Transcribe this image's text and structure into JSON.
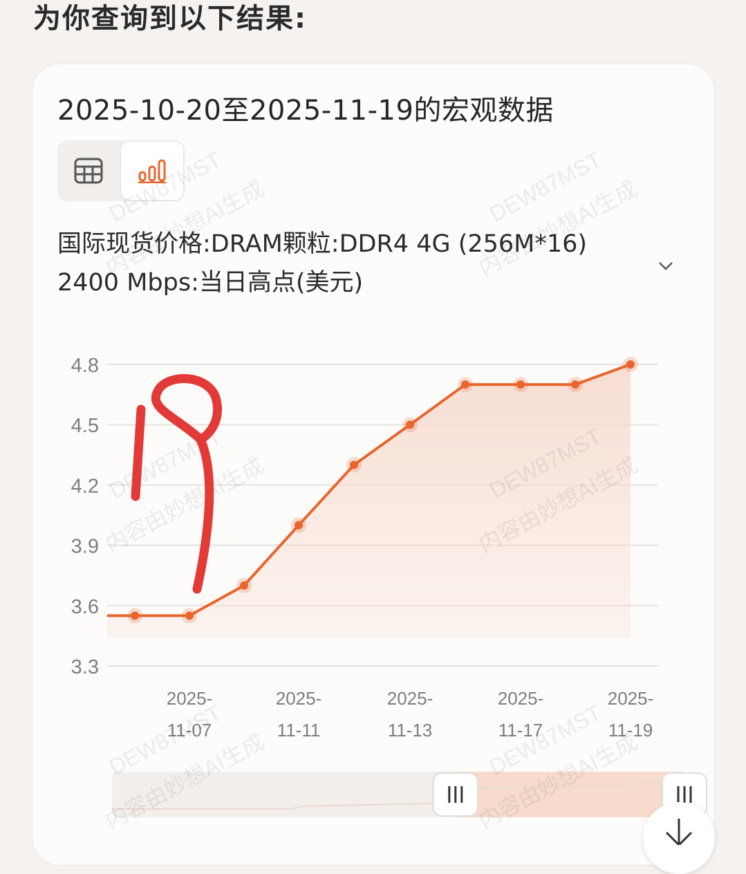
{
  "header": {
    "title": "为你查询到以下结果:"
  },
  "card": {
    "title": "2025-10-20至2025-11-19的宏观数据",
    "view_toggle": {
      "options": [
        "table-icon",
        "bar-chart-icon"
      ],
      "selected": "bar-chart-icon"
    },
    "series_select": {
      "label": "国际现货价格:DRAM颗粒:DDR4 4G (256M*16) 2400 Mbps:当日高点(美元)"
    }
  },
  "chart_data": {
    "type": "area",
    "title": "",
    "xlabel": "",
    "ylabel": "",
    "ylim": [
      3.3,
      4.8
    ],
    "yticks": [
      "4.8",
      "4.5",
      "4.2",
      "3.9",
      "3.6",
      "3.3"
    ],
    "x_tick_labels": [
      {
        "line1": "2025-",
        "line2": "11-07"
      },
      {
        "line1": "2025-",
        "line2": "11-11"
      },
      {
        "line1": "2025-",
        "line2": "11-13"
      },
      {
        "line1": "2025-",
        "line2": "11-17"
      },
      {
        "line1": "2025-",
        "line2": "11-19"
      }
    ],
    "x": [
      "2025-11-06",
      "2025-11-07",
      "2025-11-10",
      "2025-11-11",
      "2025-11-12",
      "2025-11-13",
      "2025-11-14",
      "2025-11-17",
      "2025-11-18",
      "2025-11-19"
    ],
    "series": [
      {
        "values": [
          3.55,
          3.55,
          3.7,
          4.0,
          4.3,
          4.5,
          4.7,
          4.7,
          4.7,
          4.8
        ]
      }
    ],
    "grid": true,
    "line_color": "#e8652e",
    "area_color": "#f6d9cc"
  },
  "data_zoom": {
    "range_start_percent": 60,
    "range_end_percent": 100
  },
  "watermarks": [
    "DEW87MST",
    "内容由妙想AI生成"
  ],
  "annotation": {
    "handwritten_text": "19",
    "color": "#e23a36"
  }
}
